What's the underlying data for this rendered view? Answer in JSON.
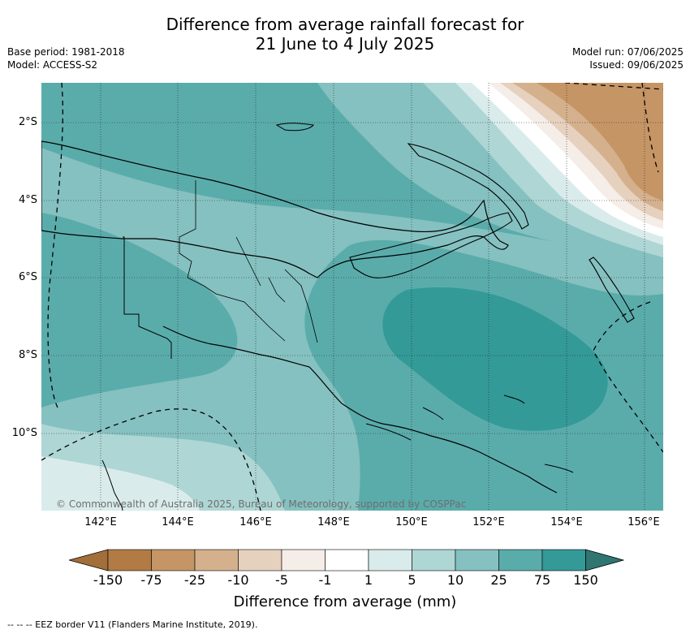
{
  "title_line1": "Difference from average rainfall forecast for",
  "title_line2": "21 June to 4 July 2025",
  "meta_left": {
    "base_period": "Base period: 1981-2018",
    "model": "Model: ACCESS-S2"
  },
  "meta_right": {
    "model_run": "Model run: 07/06/2025",
    "issued": "Issued: 09/06/2025"
  },
  "credit": "© Commonwealth of Australia 2025, Bureau of Meteorology, supported by COSPPac",
  "lon_ticks": [
    "142°E",
    "144°E",
    "146°E",
    "148°E",
    "150°E",
    "152°E",
    "154°E",
    "156°E"
  ],
  "lat_ticks": [
    "2°S",
    "4°S",
    "6°S",
    "8°S",
    "10°S"
  ],
  "colorbar": {
    "ticks": [
      "-150",
      "-75",
      "-25",
      "-10",
      "-5",
      "-1",
      "1",
      "5",
      "10",
      "25",
      "75",
      "150"
    ],
    "colors": [
      "#a26e3a",
      "#b27a44",
      "#c59565",
      "#d4b08d",
      "#e6d0be",
      "#f5ede8",
      "#ffffff",
      "#d9eceb",
      "#aed6d5",
      "#85c1c0",
      "#5aacab",
      "#339a97",
      "#2f7672"
    ],
    "label": "Difference from average (mm)"
  },
  "footnote": "-- -- -- EEZ border V11 (Flanders Marine Institute, 2019)."
}
